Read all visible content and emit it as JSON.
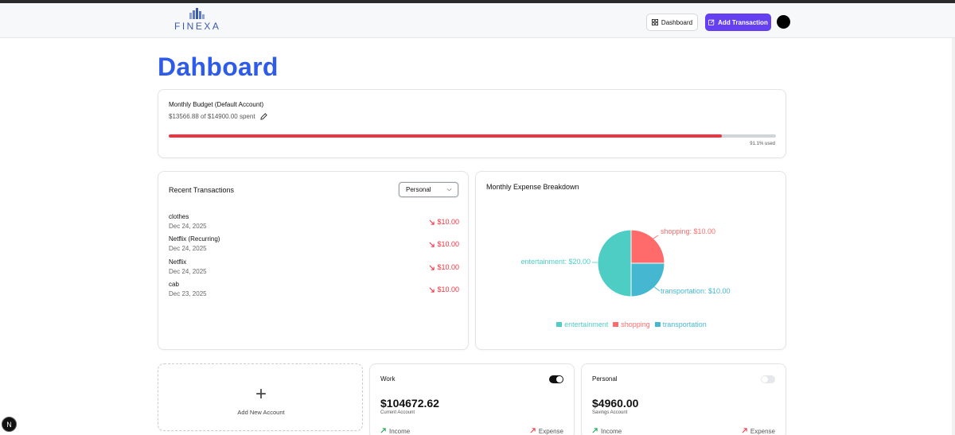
{
  "header": {
    "logo_text": "FINEXA",
    "dashboard_label": "Dashboard",
    "add_transaction_label": "Add Transaction"
  },
  "page": {
    "title": "Dahboard"
  },
  "budget": {
    "title": "Monthly Budget (Default Account)",
    "spent_text": "$13566.88 of $14900.00 spent",
    "used_fraction": 0.911,
    "used_label": "91.1% used"
  },
  "recent": {
    "title": "Recent Transactions",
    "account_selected": "Personal",
    "transactions": [
      {
        "name": "clothes",
        "date": "Dec 24, 2025",
        "amount": "$10.00"
      },
      {
        "name": "Netflix (Recurring)",
        "date": "Dec 24, 2025",
        "amount": "$10.00"
      },
      {
        "name": "Netflix",
        "date": "Dec 24, 2025",
        "amount": "$10.00"
      },
      {
        "name": "cab",
        "date": "Dec 23, 2025",
        "amount": "$10.00"
      }
    ]
  },
  "expense": {
    "title": "Monthly Expense Breakdown"
  },
  "chart_data": {
    "type": "pie",
    "title": "Monthly Expense Breakdown",
    "categories": [
      "entertainment",
      "shopping",
      "transportation"
    ],
    "values": [
      20,
      10,
      10
    ],
    "labels": [
      "entertainment: $20.00",
      "shopping: $10.00",
      "transportation: $10.00"
    ],
    "colors": [
      "#4ecdc4",
      "#ff6b6b",
      "#45b7d1"
    ],
    "legend_position": "bottom"
  },
  "add_account": {
    "label": "Add New Account",
    "plus": "+"
  },
  "accounts": [
    {
      "name": "Work",
      "balance": "$104672.62",
      "type": "Current Account",
      "income_label": "Income",
      "expense_label": "Expense",
      "default": true
    },
    {
      "name": "Personal",
      "balance": "$4960.00",
      "type": "Savings Account",
      "income_label": "Income",
      "expense_label": "Expense",
      "default": false
    }
  ],
  "badge": {
    "text": "N"
  },
  "colors": {
    "accent": "#6440f0",
    "title_blue": "#2f5bea",
    "expense_red": "#ef3340",
    "income_green": "#16a34a"
  }
}
